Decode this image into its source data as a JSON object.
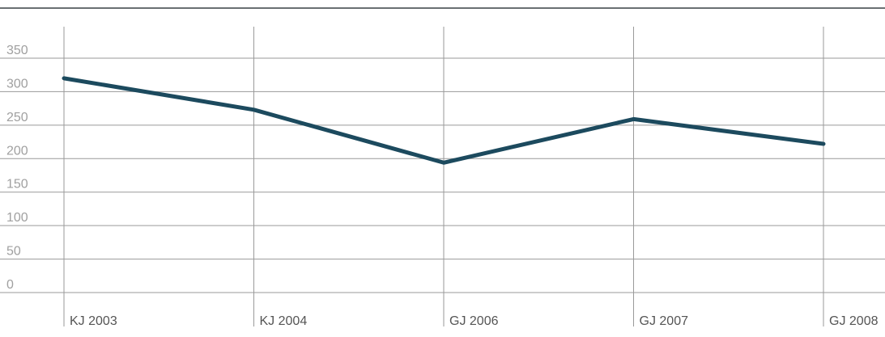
{
  "chart_data": {
    "type": "line",
    "categories": [
      "KJ 2003",
      "KJ 2004",
      "GJ 2006",
      "GJ 2007",
      "GJ 2008"
    ],
    "series": [
      {
        "name": null,
        "color": "#1c4a5e",
        "values": [
          320,
          273,
          194,
          259,
          222
        ]
      }
    ],
    "ylim": [
      0,
      350
    ],
    "yticks": [
      0,
      50,
      100,
      150,
      200,
      250,
      300,
      350
    ],
    "grid": true
  }
}
